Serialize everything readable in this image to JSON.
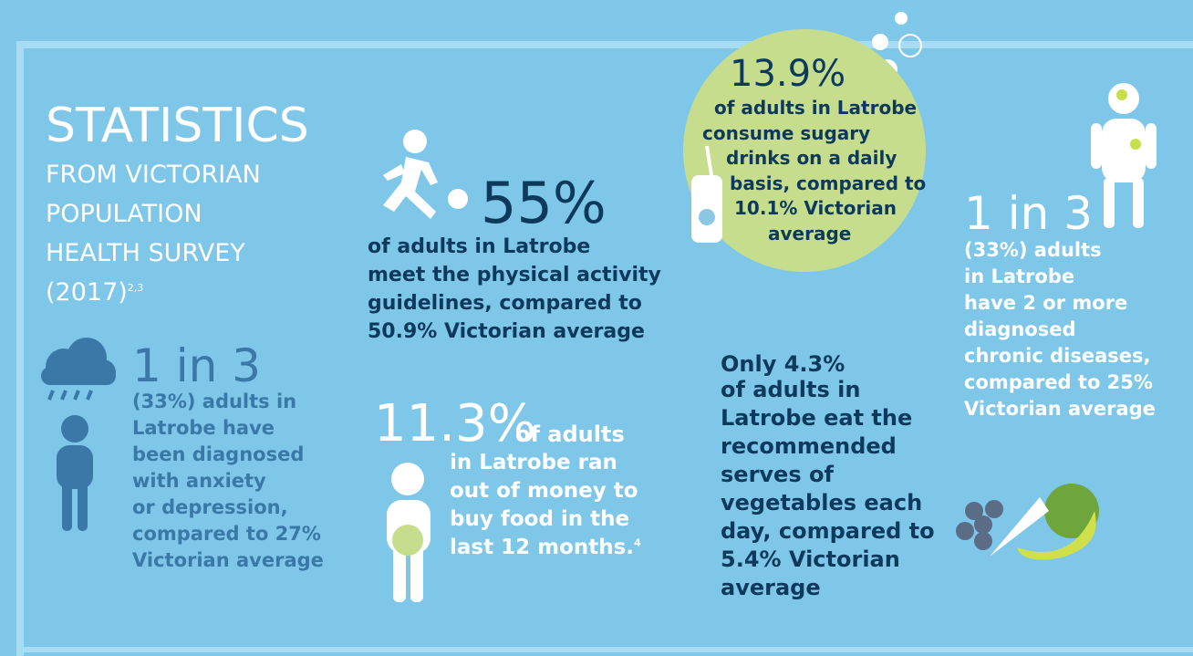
{
  "header": {
    "title": "STATISTICS",
    "subtitle_lines": [
      "FROM VICTORIAN",
      "POPULATION",
      "HEALTH SURVEY",
      "(2017)"
    ],
    "subtitle_ref": "2,3"
  },
  "stats": [
    {
      "figure": "1 in 3",
      "lines": [
        "(33%) adults in",
        "Latrobe have",
        "been diagnosed",
        "with anxiety",
        "or depression,",
        "compared to 27%",
        "Victorian average"
      ]
    },
    {
      "figure": "55%",
      "lines": [
        "of adults in Latrobe",
        "meet the physical activity",
        "guidelines, compared to",
        "50.9% Victorian average"
      ]
    },
    {
      "figure": "11.3%",
      "lead": "of adults",
      "lines": [
        "in Latrobe ran",
        "out of money to",
        "buy food in the",
        "last 12 months."
      ],
      "ref": "4"
    },
    {
      "figure": "13.9%",
      "lines": [
        "of adults in Latrobe",
        "consume sugary",
        "drinks on a daily",
        "basis, compared to",
        "10.1% Victorian",
        "average"
      ]
    },
    {
      "figure": "Only 4.3%",
      "lines": [
        "of adults in",
        "Latrobe eat the",
        "recommended",
        "serves of",
        "vegetables each",
        "day, compared to",
        "5.4% Victorian",
        "average"
      ]
    },
    {
      "figure": "1 in 3",
      "lines": [
        "(33%) adults",
        "in Latrobe",
        "have 2 or more",
        "diagnosed",
        "chronic diseases,",
        "compared to 25%",
        "Victorian average"
      ]
    }
  ]
}
